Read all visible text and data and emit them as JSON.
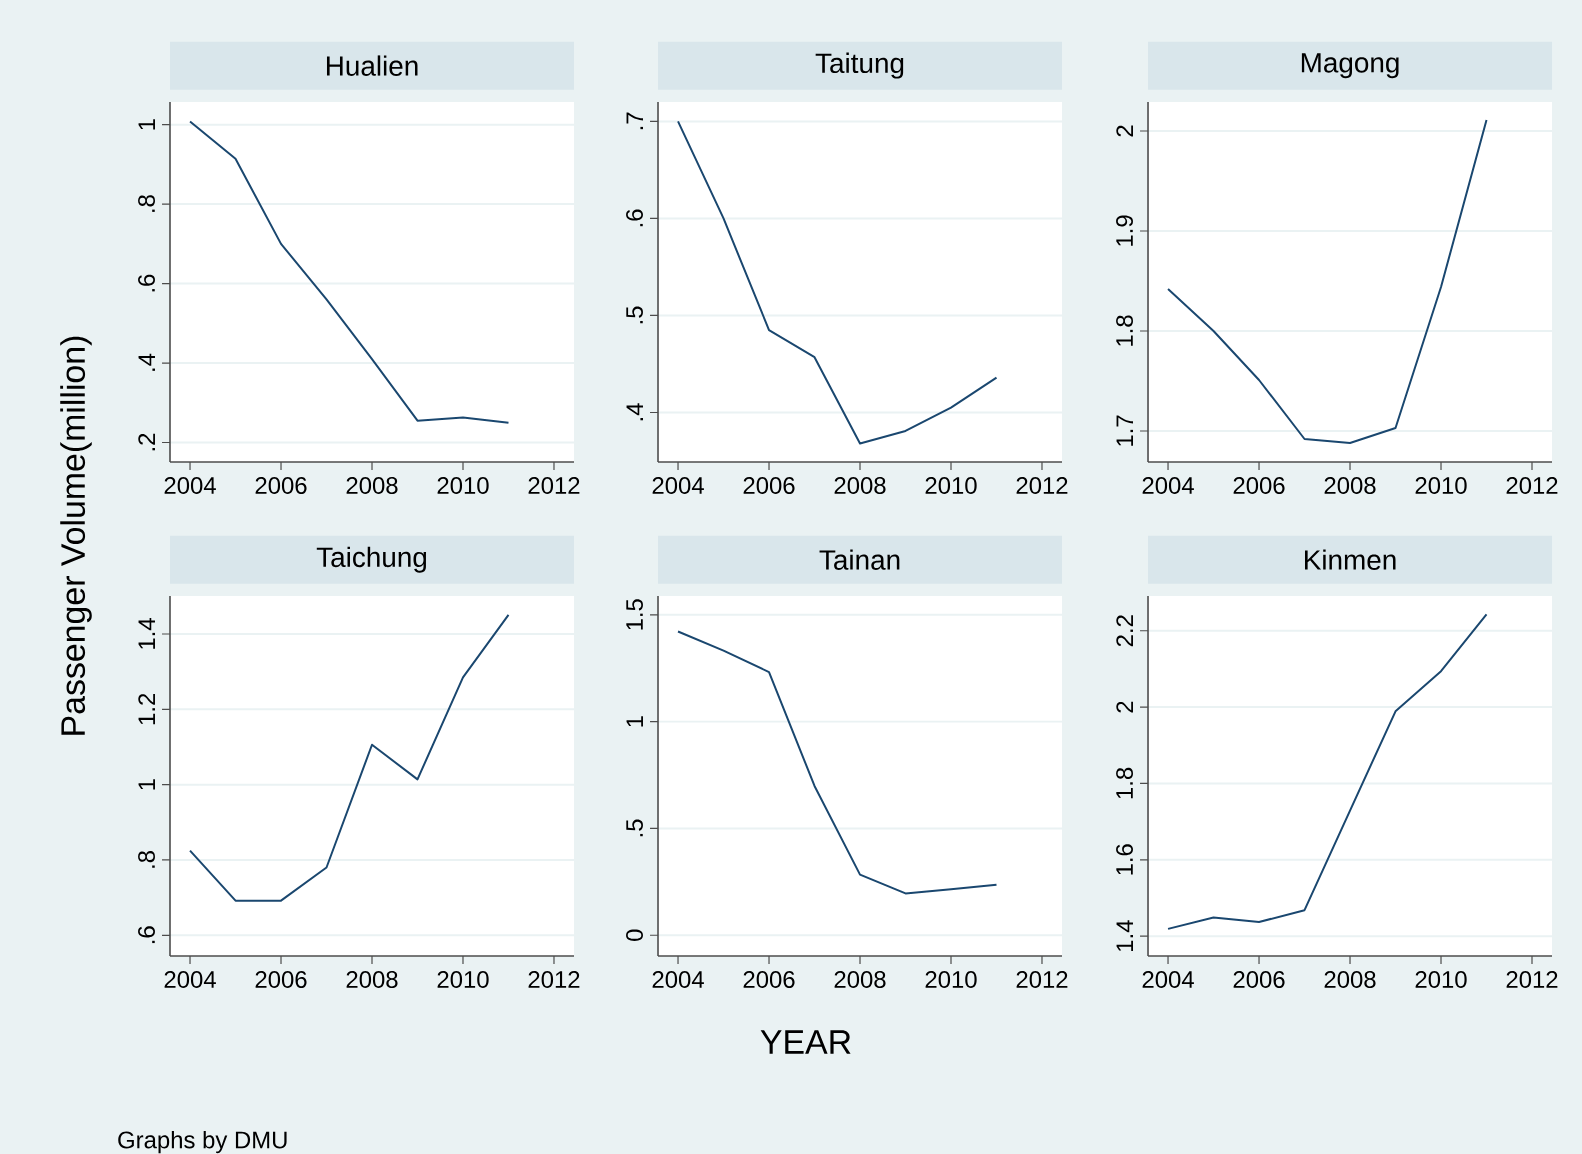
{
  "chart_data": [
    {
      "type": "line",
      "title": "Hualien",
      "ylabel": "Passenger Volume(million)",
      "x": [
        2004,
        2005,
        2006,
        2007,
        2008,
        2009,
        2010,
        2011
      ],
      "values": [
        1.008,
        0.914,
        0.7,
        0.56,
        0.41,
        0.255,
        0.263,
        0.25
      ],
      "color": "#1a476f",
      "xlim": [
        2003.56,
        2012.44
      ],
      "ylim": [
        0.151,
        1.057
      ],
      "xticks": [
        2004,
        2006,
        2008,
        2010,
        2012
      ],
      "yticks": [
        {
          "value": 0.2,
          "label": ".2"
        },
        {
          "value": 0.4,
          "label": ".4"
        },
        {
          "value": 0.6,
          "label": ".6"
        },
        {
          "value": 0.8,
          "label": ".8"
        },
        1
      ],
      "grid": "y"
    },
    {
      "type": "line",
      "title": "Taitung",
      "x": [
        2004,
        2005,
        2006,
        2007,
        2008,
        2009,
        2010,
        2011
      ],
      "values": [
        0.7,
        0.6,
        0.485,
        0.457,
        0.368,
        0.381,
        0.405,
        0.436
      ],
      "color": "#1a476f",
      "xlim": [
        2003.56,
        2012.44
      ],
      "ylim": [
        0.349,
        0.72
      ],
      "xticks": [
        2004,
        2006,
        2008,
        2010,
        2012
      ],
      "yticks": [
        {
          "value": 0.4,
          "label": ".4"
        },
        {
          "value": 0.5,
          "label": ".5"
        },
        {
          "value": 0.6,
          "label": ".6"
        },
        {
          "value": 0.7,
          "label": ".7"
        }
      ],
      "grid": "y"
    },
    {
      "type": "line",
      "title": "Magong",
      "x": [
        2004,
        2005,
        2006,
        2007,
        2008,
        2009,
        2010,
        2011
      ],
      "values": [
        1.842,
        1.8,
        1.751,
        1.692,
        1.688,
        1.703,
        1.844,
        2.011
      ],
      "color": "#1a476f",
      "xlim": [
        2003.56,
        2012.44
      ],
      "ylim": [
        1.669,
        2.029
      ],
      "xticks": [
        2004,
        2006,
        2008,
        2010,
        2012
      ],
      "yticks": [
        1.7,
        1.8,
        1.9,
        2
      ],
      "grid": "y"
    },
    {
      "type": "line",
      "title": "Taichung",
      "annotations": [
        "Graphs by DMU"
      ],
      "x": [
        2004,
        2005,
        2006,
        2007,
        2008,
        2009,
        2010,
        2011
      ],
      "values": [
        0.825,
        0.692,
        0.692,
        0.78,
        1.106,
        1.014,
        1.285,
        1.451
      ],
      "color": "#1a476f",
      "xlim": [
        2003.56,
        2012.44
      ],
      "ylim": [
        0.545,
        1.501
      ],
      "xticks": [
        2004,
        2006,
        2008,
        2010,
        2012
      ],
      "yticks": [
        {
          "value": 0.6,
          "label": ".6"
        },
        {
          "value": 0.8,
          "label": ".8"
        },
        1,
        1.2,
        1.4
      ],
      "grid": "y"
    },
    {
      "type": "line",
      "title": "Tainan",
      "xlabel": "YEAR",
      "x": [
        2004,
        2005,
        2006,
        2007,
        2008,
        2009,
        2010,
        2011
      ],
      "values": [
        1.422,
        1.332,
        1.232,
        0.699,
        0.284,
        0.196,
        0.215,
        0.237
      ],
      "color": "#1a476f",
      "xlim": [
        2003.56,
        2012.44
      ],
      "ylim": [
        -0.097,
        1.588
      ],
      "xticks": [
        2004,
        2006,
        2008,
        2010,
        2012
      ],
      "yticks": [
        0,
        {
          "value": 0.5,
          "label": ".5"
        },
        1,
        1.5
      ],
      "grid": "y"
    },
    {
      "type": "line",
      "title": "Kinmen",
      "x": [
        2004,
        2005,
        2006,
        2007,
        2008,
        2009,
        2010,
        2011
      ],
      "values": [
        1.419,
        1.449,
        1.437,
        1.468,
        1.729,
        1.989,
        2.094,
        2.243
      ],
      "color": "#1a476f",
      "xlim": [
        2003.56,
        2012.44
      ],
      "ylim": [
        1.348,
        2.291
      ],
      "xticks": [
        2004,
        2006,
        2008,
        2010,
        2012
      ],
      "yticks": [
        1.4,
        1.6,
        1.8,
        2,
        2.2
      ],
      "grid": "y"
    }
  ]
}
